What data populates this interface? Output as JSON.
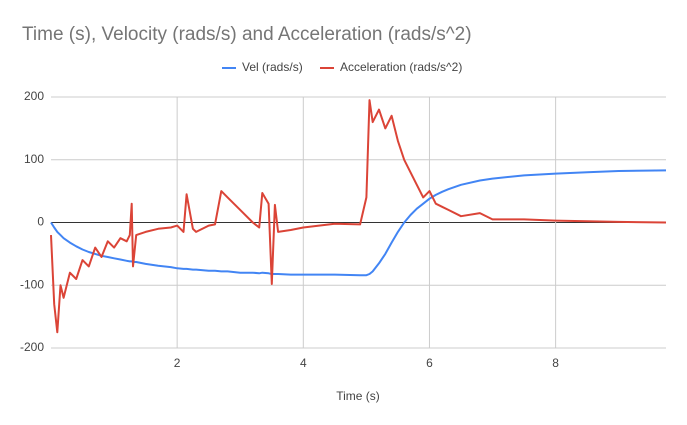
{
  "chart_data": {
    "type": "line",
    "title": "Time (s), Velocity (rads/s) and Acceleration (rads/s^2)",
    "x_label": "Time (s)",
    "x": [
      0,
      0.05,
      0.1,
      0.15,
      0.2,
      0.3,
      0.4,
      0.5,
      0.6,
      0.7,
      0.8,
      0.9,
      1.0,
      1.1,
      1.2,
      1.25,
      1.28,
      1.3,
      1.35,
      1.5,
      1.7,
      1.9,
      2.0,
      2.1,
      2.15,
      2.25,
      2.3,
      2.5,
      2.6,
      2.7,
      2.8,
      3.0,
      3.2,
      3.3,
      3.35,
      3.45,
      3.5,
      3.55,
      3.6,
      3.8,
      4.0,
      4.5,
      4.9,
      5.0,
      5.05,
      5.1,
      5.2,
      5.3,
      5.4,
      5.5,
      5.6,
      5.7,
      5.8,
      5.9,
      6.0,
      6.1,
      6.2,
      6.3,
      6.5,
      6.8,
      7.0,
      7.5,
      8.0,
      8.5,
      9.0,
      9.75
    ],
    "series": [
      {
        "name": "Vel (rads/s)",
        "color": "#4285f4",
        "values": [
          0,
          -8,
          -15,
          -20,
          -25,
          -32,
          -38,
          -43,
          -47,
          -50,
          -53,
          -55,
          -57,
          -59,
          -61,
          -62,
          -62,
          -63,
          -63,
          -66,
          -69,
          -71,
          -73,
          -74,
          -74,
          -75,
          -75,
          -77,
          -77,
          -78,
          -78,
          -80,
          -80,
          -81,
          -80,
          -81,
          -82,
          -82,
          -82,
          -83,
          -83,
          -83,
          -84,
          -84,
          -82,
          -78,
          -65,
          -50,
          -32,
          -15,
          0,
          12,
          22,
          30,
          38,
          44,
          49,
          53,
          60,
          67,
          70,
          75,
          78,
          80,
          82,
          83
        ]
      },
      {
        "name": "Acceleration (rads/s^2)",
        "color": "#db4437",
        "values": [
          -20,
          -130,
          -175,
          -100,
          -120,
          -80,
          -90,
          -60,
          -70,
          -40,
          -55,
          -30,
          -40,
          -25,
          -30,
          -20,
          30,
          -70,
          -20,
          -15,
          -10,
          -8,
          -5,
          -15,
          45,
          -10,
          -15,
          -5,
          -3,
          50,
          40,
          20,
          0,
          -8,
          47,
          30,
          -98,
          28,
          -15,
          -12,
          -8,
          -2,
          -3,
          40,
          195,
          160,
          180,
          150,
          170,
          130,
          100,
          80,
          60,
          40,
          50,
          30,
          25,
          20,
          10,
          15,
          5,
          5,
          3,
          2,
          1,
          0
        ]
      }
    ],
    "xlim": [
      0,
      9.75
    ],
    "xticks": [
      2,
      4,
      6,
      8
    ],
    "ylim": [
      -200,
      200
    ],
    "yticks": [
      -200,
      -100,
      0,
      100,
      200
    ],
    "grid": true,
    "legend": "top"
  }
}
